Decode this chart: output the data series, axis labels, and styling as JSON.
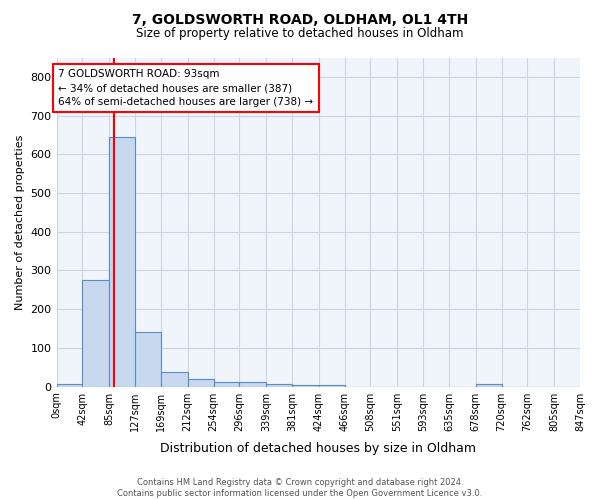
{
  "title1": "7, GOLDSWORTH ROAD, OLDHAM, OL1 4TH",
  "title2": "Size of property relative to detached houses in Oldham",
  "xlabel": "Distribution of detached houses by size in Oldham",
  "ylabel": "Number of detached properties",
  "footer": "Contains HM Land Registry data © Crown copyright and database right 2024.\nContains public sector information licensed under the Open Government Licence v3.0.",
  "bin_edges": [
    0,
    42,
    85,
    127,
    169,
    212,
    254,
    296,
    339,
    381,
    424,
    466,
    508,
    551,
    593,
    635,
    678,
    720,
    762,
    805,
    847
  ],
  "bin_labels": [
    "0sqm",
    "42sqm",
    "85sqm",
    "127sqm",
    "169sqm",
    "212sqm",
    "254sqm",
    "296sqm",
    "339sqm",
    "381sqm",
    "424sqm",
    "466sqm",
    "508sqm",
    "551sqm",
    "593sqm",
    "635sqm",
    "678sqm",
    "720sqm",
    "762sqm",
    "805sqm",
    "847sqm"
  ],
  "counts": [
    8,
    275,
    645,
    140,
    37,
    20,
    13,
    11,
    7,
    5,
    5,
    0,
    0,
    0,
    0,
    0,
    8,
    0,
    0,
    0
  ],
  "bar_facecolor": "#c8d8ef",
  "bar_edgecolor": "#5a8cc7",
  "grid_color": "#cdd5e5",
  "bg_color": "#f0f4fb",
  "fig_bg_color": "#ffffff",
  "property_value": 93,
  "red_line_x": 93,
  "annotation_text": "7 GOLDSWORTH ROAD: 93sqm\n← 34% of detached houses are smaller (387)\n64% of semi-detached houses are larger (738) →",
  "annotation_box_color": "white",
  "annotation_box_edgecolor": "red",
  "ylim": [
    0,
    850
  ],
  "xlim": [
    0,
    847
  ]
}
